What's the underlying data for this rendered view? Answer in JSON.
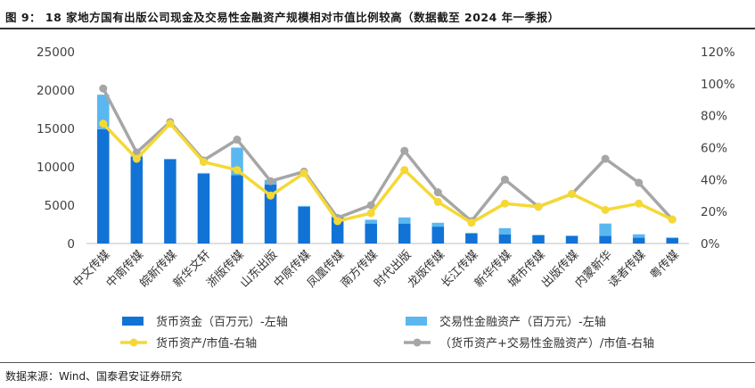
{
  "figure": {
    "title": "图 9：  18 家地方国有出版公司现金及交易性金融资产规模相对市值比例较高（数据截至 2024 年一季报）",
    "source": "数据来源：Wind、国泰君安证券研究"
  },
  "colors": {
    "cash": "#1273d6",
    "trading_assets": "#5bb7ef",
    "cash_ratio_line": "#f5d836",
    "total_ratio_line": "#a6a6a6"
  },
  "chart_data": {
    "type": "bar",
    "categories": [
      "中文传媒",
      "中南传媒",
      "皖新传媒",
      "新华文轩",
      "浙版传媒",
      "山东出版",
      "中原传媒",
      "凤凰传媒",
      "南方传媒",
      "时代出版",
      "龙版传媒",
      "长江传媒",
      "新华传媒",
      "城市传媒",
      "出版传媒",
      "内蒙新华",
      "读者传媒",
      "粤传媒"
    ],
    "series": [
      {
        "name": "货币资金（百万元）-左轴",
        "kind": "bar",
        "axis": "left",
        "stack": "a",
        "values": [
          14900,
          11300,
          11000,
          9100,
          8900,
          7700,
          4800,
          3400,
          2600,
          2600,
          2200,
          1300,
          1200,
          1100,
          1000,
          1000,
          750,
          750
        ]
      },
      {
        "name": "交易性金融资产（百万元）-左轴",
        "kind": "bar",
        "axis": "left",
        "stack": "a",
        "values": [
          4500,
          200,
          0,
          100,
          3600,
          600,
          100,
          300,
          500,
          800,
          500,
          100,
          800,
          0,
          0,
          1600,
          450,
          0
        ]
      },
      {
        "name": "货币资产/市值-右轴",
        "kind": "line",
        "axis": "right",
        "values": [
          0.75,
          0.53,
          0.75,
          0.51,
          0.46,
          0.3,
          0.44,
          0.14,
          0.19,
          0.46,
          0.26,
          0.13,
          0.25,
          0.23,
          0.31,
          0.21,
          0.25,
          0.15
        ]
      },
      {
        "name": "（货币资产+交易性金融资产）/市值-右轴",
        "kind": "line",
        "axis": "right",
        "values": [
          0.97,
          0.57,
          0.76,
          0.52,
          0.65,
          0.39,
          0.45,
          0.16,
          0.24,
          0.58,
          0.32,
          0.14,
          0.4,
          0.23,
          0.31,
          0.53,
          0.38,
          0.15
        ]
      }
    ],
    "y_left": {
      "min": 0,
      "max": 25000,
      "ticks": [
        "0",
        "5000",
        "10000",
        "15000",
        "20000",
        "25000"
      ]
    },
    "y_right": {
      "min": 0,
      "max": 1.2,
      "ticks": [
        "0%",
        "20%",
        "40%",
        "60%",
        "80%",
        "100%",
        "120%"
      ]
    },
    "grid": false,
    "legend_position": "bottom"
  }
}
